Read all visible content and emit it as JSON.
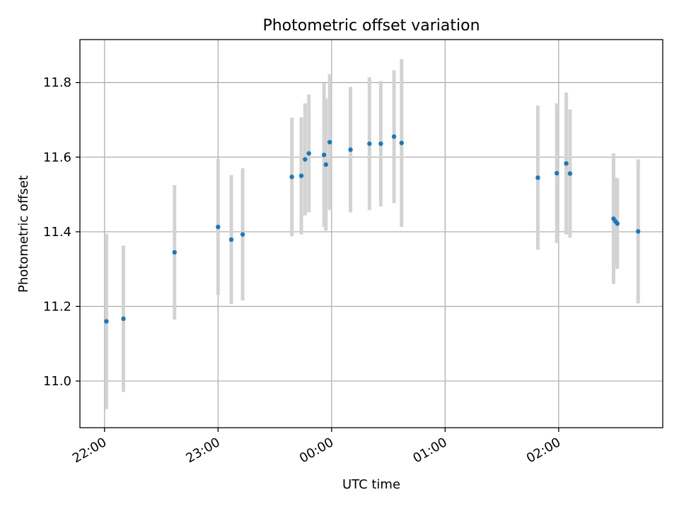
{
  "chart_data": {
    "type": "scatter",
    "title": "Photometric offset variation",
    "xlabel": "UTC time",
    "ylabel": "Photometric offset",
    "grid": true,
    "xlim": [
      "21:47",
      "02:55"
    ],
    "ylim": [
      10.875,
      11.915
    ],
    "x_ticks": [
      "22:00",
      "23:00",
      "00:00",
      "01:00",
      "02:00"
    ],
    "y_ticks": [
      "11.0",
      "11.2",
      "11.4",
      "11.6",
      "11.8"
    ],
    "point_color": "#1f77b4",
    "errorbar_color": "#d3d3d3",
    "points": [
      {
        "x": "22:01",
        "y": 11.16,
        "yerr": 0.235
      },
      {
        "x": "22:10",
        "y": 11.167,
        "yerr": 0.196
      },
      {
        "x": "22:37",
        "y": 11.345,
        "yerr": 0.18
      },
      {
        "x": "23:00",
        "y": 11.413,
        "yerr": 0.182
      },
      {
        "x": "23:07",
        "y": 11.379,
        "yerr": 0.173
      },
      {
        "x": "23:13",
        "y": 11.393,
        "yerr": 0.177
      },
      {
        "x": "23:39",
        "y": 11.547,
        "yerr": 0.159
      },
      {
        "x": "23:44",
        "y": 11.55,
        "yerr": 0.157
      },
      {
        "x": "23:46",
        "y": 11.594,
        "yerr": 0.15
      },
      {
        "x": "23:48",
        "y": 11.61,
        "yerr": 0.158
      },
      {
        "x": "23:56",
        "y": 11.606,
        "yerr": 0.193
      },
      {
        "x": "23:57",
        "y": 11.58,
        "yerr": 0.177
      },
      {
        "x": "23:59",
        "y": 11.64,
        "yerr": 0.182
      },
      {
        "x": "00:10",
        "y": 11.62,
        "yerr": 0.168
      },
      {
        "x": "00:20",
        "y": 11.636,
        "yerr": 0.178
      },
      {
        "x": "00:26",
        "y": 11.636,
        "yerr": 0.168
      },
      {
        "x": "00:33",
        "y": 11.655,
        "yerr": 0.178
      },
      {
        "x": "00:37",
        "y": 11.638,
        "yerr": 0.225
      },
      {
        "x": "01:49",
        "y": 11.545,
        "yerr": 0.193
      },
      {
        "x": "01:59",
        "y": 11.557,
        "yerr": 0.187
      },
      {
        "x": "02:04",
        "y": 11.583,
        "yerr": 0.19
      },
      {
        "x": "02:06",
        "y": 11.556,
        "yerr": 0.172
      },
      {
        "x": "02:29",
        "y": 11.435,
        "yerr": 0.175
      },
      {
        "x": "02:30",
        "y": 11.428,
        "yerr": 0.117
      },
      {
        "x": "02:31",
        "y": 11.422,
        "yerr": 0.122
      },
      {
        "x": "02:42",
        "y": 11.401,
        "yerr": 0.193
      }
    ]
  }
}
